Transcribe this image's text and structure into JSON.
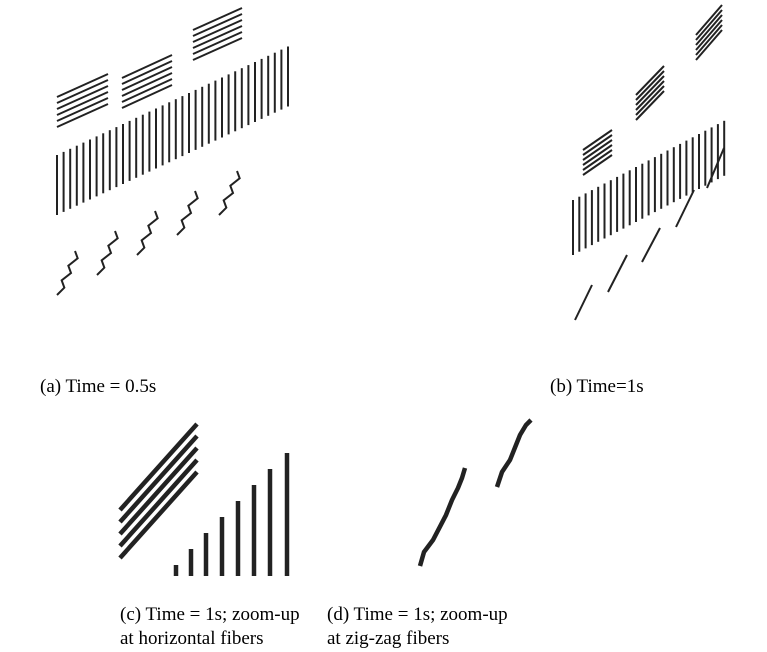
{
  "captions": {
    "a": "(a) Time = 0.5s",
    "b": "(b) Time=1s",
    "c": [
      "(c) Time = 1s; zoom-up",
      "at horizontal fibers"
    ],
    "d": [
      "(d) Time = 1s; zoom-up",
      "at zig-zag fibers"
    ]
  }
}
